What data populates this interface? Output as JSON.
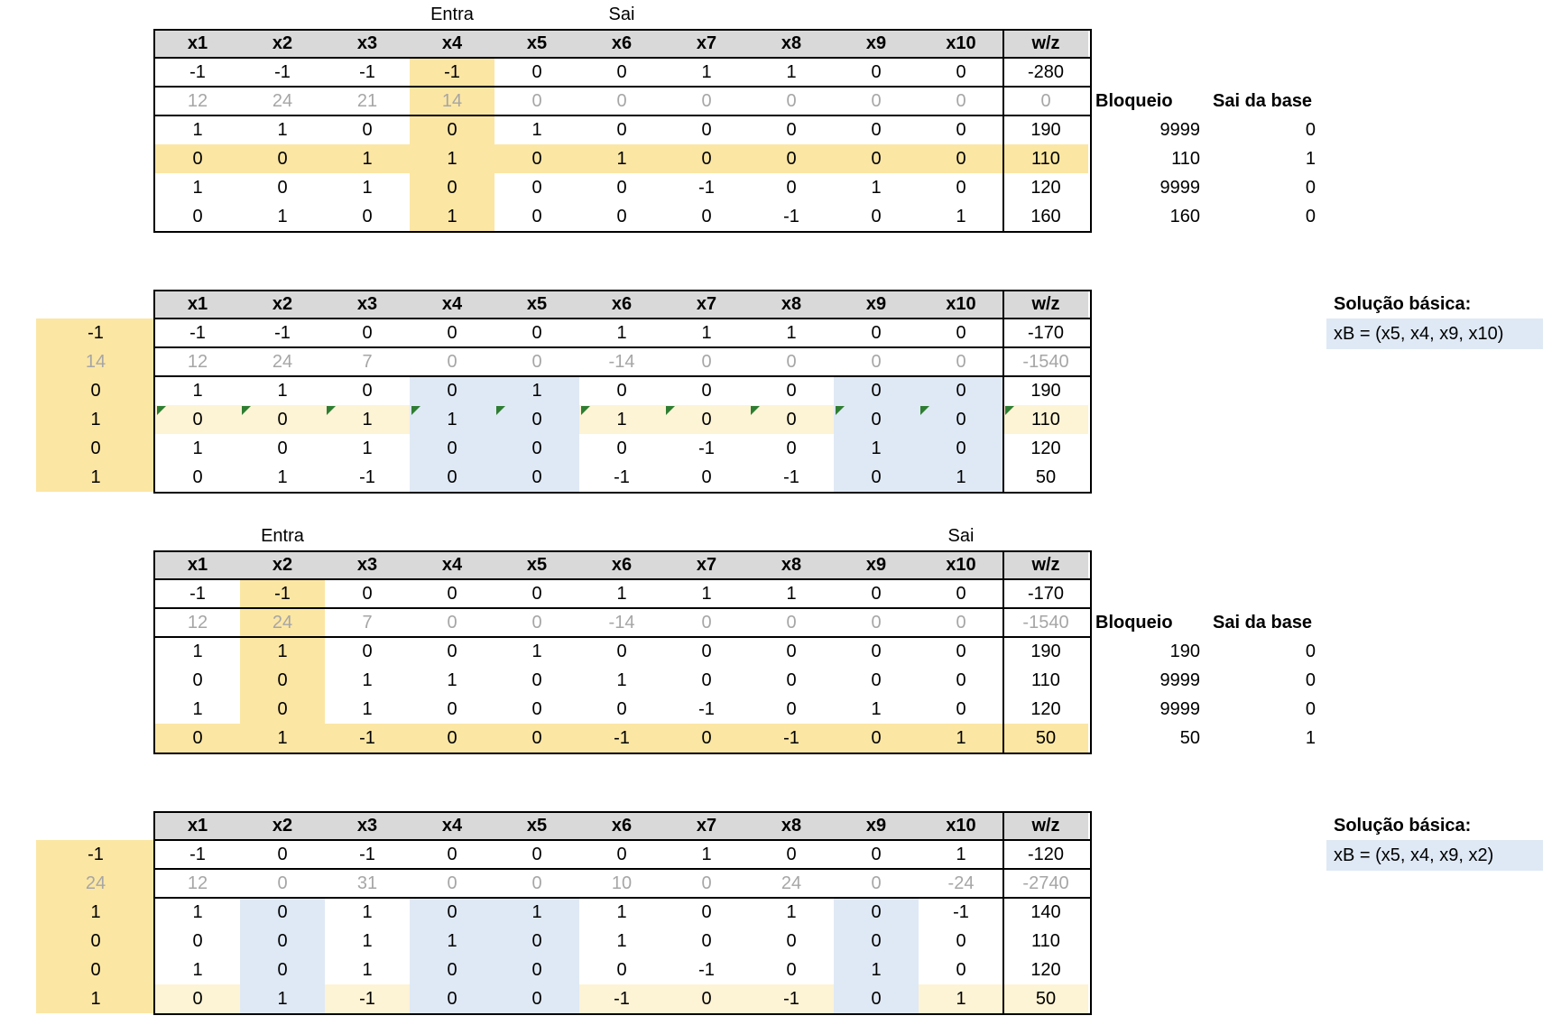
{
  "columns": [
    "x1",
    "x2",
    "x3",
    "x4",
    "x5",
    "x6",
    "x7",
    "x8",
    "x9",
    "x10",
    "w/z"
  ],
  "tableaus": [
    {
      "id": "t1",
      "entra": {
        "label": "Entra",
        "col": 3
      },
      "sai": {
        "label": "Sai",
        "col": 5
      },
      "rows": [
        [
          "-1",
          "-1",
          "-1",
          "-1",
          "0",
          "0",
          "1",
          "1",
          "0",
          "0",
          "-280"
        ],
        [
          "12",
          "24",
          "21",
          "14",
          "0",
          "0",
          "0",
          "0",
          "0",
          "0",
          "0"
        ],
        [
          "1",
          "1",
          "0",
          "0",
          "1",
          "0",
          "0",
          "0",
          "0",
          "0",
          "190"
        ],
        [
          "0",
          "0",
          "1",
          "1",
          "0",
          "1",
          "0",
          "0",
          "0",
          "0",
          "110"
        ],
        [
          "1",
          "0",
          "1",
          "0",
          "0",
          "0",
          "-1",
          "0",
          "1",
          "0",
          "120"
        ],
        [
          "0",
          "1",
          "0",
          "1",
          "0",
          "0",
          "0",
          "-1",
          "0",
          "1",
          "160"
        ]
      ],
      "side_header": [
        "Bloqueio",
        "Sai da base"
      ],
      "side_rows": [
        [
          "9999",
          "0"
        ],
        [
          "110",
          "1"
        ],
        [
          "9999",
          "0"
        ],
        [
          "160",
          "0"
        ]
      ]
    },
    {
      "id": "t2",
      "left_col": [
        "-1",
        "14",
        "0",
        "1",
        "0",
        "1"
      ],
      "rows": [
        [
          "-1",
          "-1",
          "0",
          "0",
          "0",
          "1",
          "1",
          "1",
          "0",
          "0",
          "-170"
        ],
        [
          "12",
          "24",
          "7",
          "0",
          "0",
          "-14",
          "0",
          "0",
          "0",
          "0",
          "-1540"
        ],
        [
          "1",
          "1",
          "0",
          "0",
          "1",
          "0",
          "0",
          "0",
          "0",
          "0",
          "190"
        ],
        [
          "0",
          "0",
          "1",
          "1",
          "0",
          "1",
          "0",
          "0",
          "0",
          "0",
          "110"
        ],
        [
          "1",
          "0",
          "1",
          "0",
          "0",
          "0",
          "-1",
          "0",
          "1",
          "0",
          "120"
        ],
        [
          "0",
          "1",
          "-1",
          "0",
          "0",
          "-1",
          "0",
          "-1",
          "0",
          "1",
          "50"
        ]
      ],
      "solution": {
        "title": "Solução básica:",
        "value": "xB = (x5, x4, x9, x10)"
      }
    },
    {
      "id": "t3",
      "entra": {
        "label": "Entra",
        "col": 1
      },
      "sai": {
        "label": "Sai",
        "col": 9
      },
      "rows": [
        [
          "-1",
          "-1",
          "0",
          "0",
          "0",
          "1",
          "1",
          "1",
          "0",
          "0",
          "-170"
        ],
        [
          "12",
          "24",
          "7",
          "0",
          "0",
          "-14",
          "0",
          "0",
          "0",
          "0",
          "-1540"
        ],
        [
          "1",
          "1",
          "0",
          "0",
          "1",
          "0",
          "0",
          "0",
          "0",
          "0",
          "190"
        ],
        [
          "0",
          "0",
          "1",
          "1",
          "0",
          "1",
          "0",
          "0",
          "0",
          "0",
          "110"
        ],
        [
          "1",
          "0",
          "1",
          "0",
          "0",
          "0",
          "-1",
          "0",
          "1",
          "0",
          "120"
        ],
        [
          "0",
          "1",
          "-1",
          "0",
          "0",
          "-1",
          "0",
          "-1",
          "0",
          "1",
          "50"
        ]
      ],
      "side_header": [
        "Bloqueio",
        "Sai da base"
      ],
      "side_rows": [
        [
          "190",
          "0"
        ],
        [
          "9999",
          "0"
        ],
        [
          "9999",
          "0"
        ],
        [
          "50",
          "1"
        ]
      ]
    },
    {
      "id": "t4",
      "left_col": [
        "-1",
        "24",
        "1",
        "0",
        "0",
        "1"
      ],
      "rows": [
        [
          "-1",
          "0",
          "-1",
          "0",
          "0",
          "0",
          "1",
          "0",
          "0",
          "1",
          "-120"
        ],
        [
          "12",
          "0",
          "31",
          "0",
          "0",
          "10",
          "0",
          "24",
          "0",
          "-24",
          "-2740"
        ],
        [
          "1",
          "0",
          "1",
          "0",
          "1",
          "1",
          "0",
          "1",
          "0",
          "-1",
          "140"
        ],
        [
          "0",
          "0",
          "1",
          "1",
          "0",
          "1",
          "0",
          "0",
          "0",
          "0",
          "110"
        ],
        [
          "1",
          "0",
          "1",
          "0",
          "0",
          "0",
          "-1",
          "0",
          "1",
          "0",
          "120"
        ],
        [
          "0",
          "1",
          "-1",
          "0",
          "0",
          "-1",
          "0",
          "-1",
          "0",
          "1",
          "50"
        ]
      ],
      "solution": {
        "title": "Solução básica:",
        "value": "xB = (x5, x4, x9, x2)"
      }
    }
  ]
}
